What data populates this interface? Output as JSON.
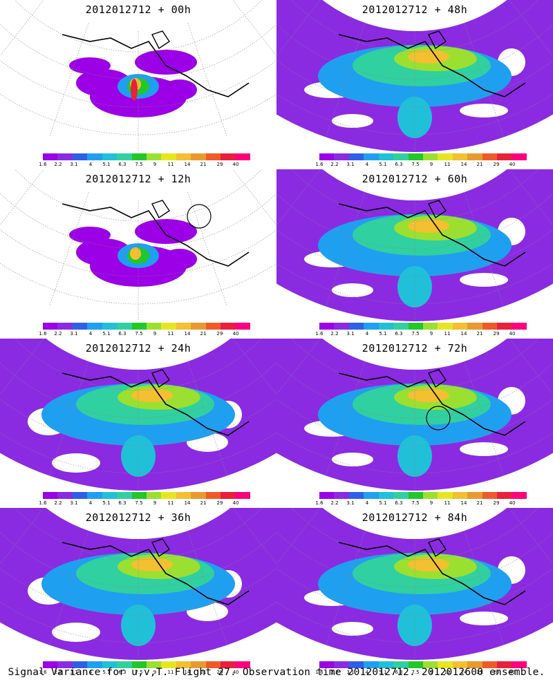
{
  "colorbar": {
    "colors": [
      "#9b00e6",
      "#8a2be2",
      "#2f5fe8",
      "#1f9ff0",
      "#20c0d8",
      "#30d0a0",
      "#22c72a",
      "#9be030",
      "#e6e620",
      "#f2c030",
      "#e89a30",
      "#f05a28",
      "#e8203c",
      "#ff007c"
    ],
    "ticks": [
      "1.6",
      "2.2",
      "3.1",
      "4",
      "5.1",
      "6.3",
      "7.5",
      "9",
      "11",
      "14",
      "21",
      "29",
      "40"
    ]
  },
  "panels": [
    {
      "id": "p00",
      "title": "2012012712 + 00h",
      "style": "sparse",
      "circle": false
    },
    {
      "id": "p48",
      "title": "2012012712 + 48h",
      "style": "dense",
      "circle": false
    },
    {
      "id": "p12",
      "title": "2012012712 + 12h",
      "style": "sparse",
      "circle": true
    },
    {
      "id": "p60",
      "title": "2012012712 + 60h",
      "style": "dense",
      "circle": false
    },
    {
      "id": "p24",
      "title": "2012012712 + 24h",
      "style": "medium",
      "circle": false
    },
    {
      "id": "p72",
      "title": "2012012712 + 72h",
      "style": "dense",
      "circle": true
    },
    {
      "id": "p36",
      "title": "2012012712 + 36h",
      "style": "medium",
      "circle": false
    },
    {
      "id": "p84",
      "title": "2012012712 + 84h",
      "style": "dense",
      "circle": false
    }
  ],
  "caption": "Signal Variance for u,v,T. Flight 27. Observation time 2012012712. 2012012600 ensemble."
}
